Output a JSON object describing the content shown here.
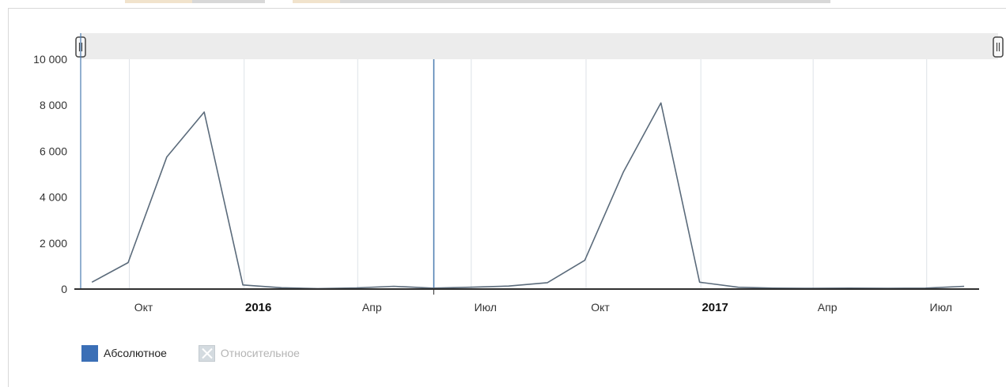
{
  "chart_data": {
    "type": "line",
    "title": "",
    "xlabel": "",
    "ylabel": "",
    "ylim": [
      0,
      10000
    ],
    "xlim": [
      "2015-08-23",
      "2017-08-12"
    ],
    "yticks": [
      {
        "value": 0,
        "label": "0"
      },
      {
        "value": 2000,
        "label": "2 000"
      },
      {
        "value": 4000,
        "label": "4 000"
      },
      {
        "value": 6000,
        "label": "6 000"
      },
      {
        "value": 8000,
        "label": "8 000"
      },
      {
        "value": 10000,
        "label": "10 000"
      }
    ],
    "xticks": [
      {
        "date": "2015-10-01",
        "label": "Окт",
        "bold": false
      },
      {
        "date": "2016-01-01",
        "label": "2016",
        "bold": true
      },
      {
        "date": "2016-04-01",
        "label": "Апр",
        "bold": false
      },
      {
        "date": "2016-07-01",
        "label": "Июл",
        "bold": false
      },
      {
        "date": "2016-10-01",
        "label": "Окт",
        "bold": false
      },
      {
        "date": "2017-01-01",
        "label": "2017",
        "bold": true
      },
      {
        "date": "2017-04-01",
        "label": "Апр",
        "bold": false
      },
      {
        "date": "2017-07-01",
        "label": "Июл",
        "bold": false
      }
    ],
    "cursor_date": "2016-06-01",
    "grid": {
      "x": true,
      "y": false
    },
    "series": [
      {
        "color": "#5b6b7b",
        "points": [
          {
            "x": "2015-09-01",
            "y": 300
          },
          {
            "x": "2015-09-30",
            "y": 1150
          },
          {
            "x": "2015-10-31",
            "y": 5750
          },
          {
            "x": "2015-11-30",
            "y": 7700
          },
          {
            "x": "2015-12-31",
            "y": 180
          },
          {
            "x": "2016-01-31",
            "y": 60
          },
          {
            "x": "2016-02-29",
            "y": 20
          },
          {
            "x": "2016-03-31",
            "y": 50
          },
          {
            "x": "2016-04-30",
            "y": 120
          },
          {
            "x": "2016-05-31",
            "y": 40
          },
          {
            "x": "2016-06-30",
            "y": 80
          },
          {
            "x": "2016-07-31",
            "y": 130
          },
          {
            "x": "2016-08-31",
            "y": 280
          },
          {
            "x": "2016-09-30",
            "y": 1250
          },
          {
            "x": "2016-10-31",
            "y": 5100
          },
          {
            "x": "2016-11-30",
            "y": 8100
          },
          {
            "x": "2016-12-31",
            "y": 300
          },
          {
            "x": "2017-01-31",
            "y": 80
          },
          {
            "x": "2017-02-28",
            "y": 40
          },
          {
            "x": "2017-03-31",
            "y": 30
          },
          {
            "x": "2017-04-30",
            "y": 40
          },
          {
            "x": "2017-05-31",
            "y": 30
          },
          {
            "x": "2017-06-30",
            "y": 40
          },
          {
            "x": "2017-07-31",
            "y": 120
          }
        ]
      }
    ]
  },
  "legend": {
    "items": [
      {
        "label": "Абсолютное",
        "active": true
      },
      {
        "label": "Относительное",
        "active": false
      }
    ]
  },
  "colors": {
    "line": "#5b6b7b",
    "cursor": "#4a7bb0",
    "grid": "#dde2e7",
    "navigator_band": "#ececec",
    "swatch_active": "#3b6fb6"
  }
}
